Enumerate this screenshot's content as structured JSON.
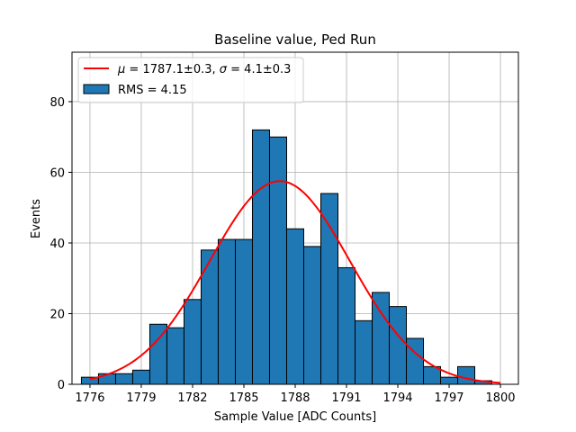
{
  "chart_data": {
    "type": "bar",
    "title": "Baseline value, Ped Run",
    "xlabel": "Sample Value [ADC Counts]",
    "ylabel": "Events",
    "xlim": [
      1774.95,
      1801.05
    ],
    "ylim": [
      0,
      94
    ],
    "grid": true,
    "xticks": [
      1776,
      1779,
      1782,
      1785,
      1788,
      1791,
      1794,
      1797,
      1800
    ],
    "yticks": [
      0,
      20,
      40,
      60,
      80
    ],
    "histogram": {
      "name": "RMS = 4.15",
      "color": "#1f77b4",
      "bin_width": 1,
      "bin_starts": [
        1775.5,
        1776.5,
        1777.5,
        1778.5,
        1779.5,
        1780.5,
        1781.5,
        1782.5,
        1783.5,
        1784.5,
        1785.5,
        1786.5,
        1787.5,
        1788.5,
        1789.5,
        1790.5,
        1791.5,
        1792.5,
        1793.5,
        1794.5,
        1795.5,
        1796.5,
        1797.5,
        1798.5
      ],
      "counts": [
        2,
        3,
        3,
        4,
        17,
        16,
        24,
        38,
        41,
        41,
        72,
        70,
        44,
        39,
        54,
        33,
        18,
        26,
        22,
        13,
        5,
        2,
        5,
        1
      ]
    },
    "fit": {
      "name": "μ = 1787.1±0.3, σ = 4.1±0.3",
      "legend_parts": {
        "mu": "μ",
        "eq1": " = 1787.1±0.3, ",
        "sigma": "σ",
        "eq2": " = 4.1±0.3"
      },
      "color": "#ff0000",
      "function": "gaussian",
      "mu": 1787.1,
      "sigma": 4.1,
      "amplitude": 57.5,
      "x_range": [
        1776,
        1800
      ]
    },
    "legend_location": "upper-left"
  }
}
